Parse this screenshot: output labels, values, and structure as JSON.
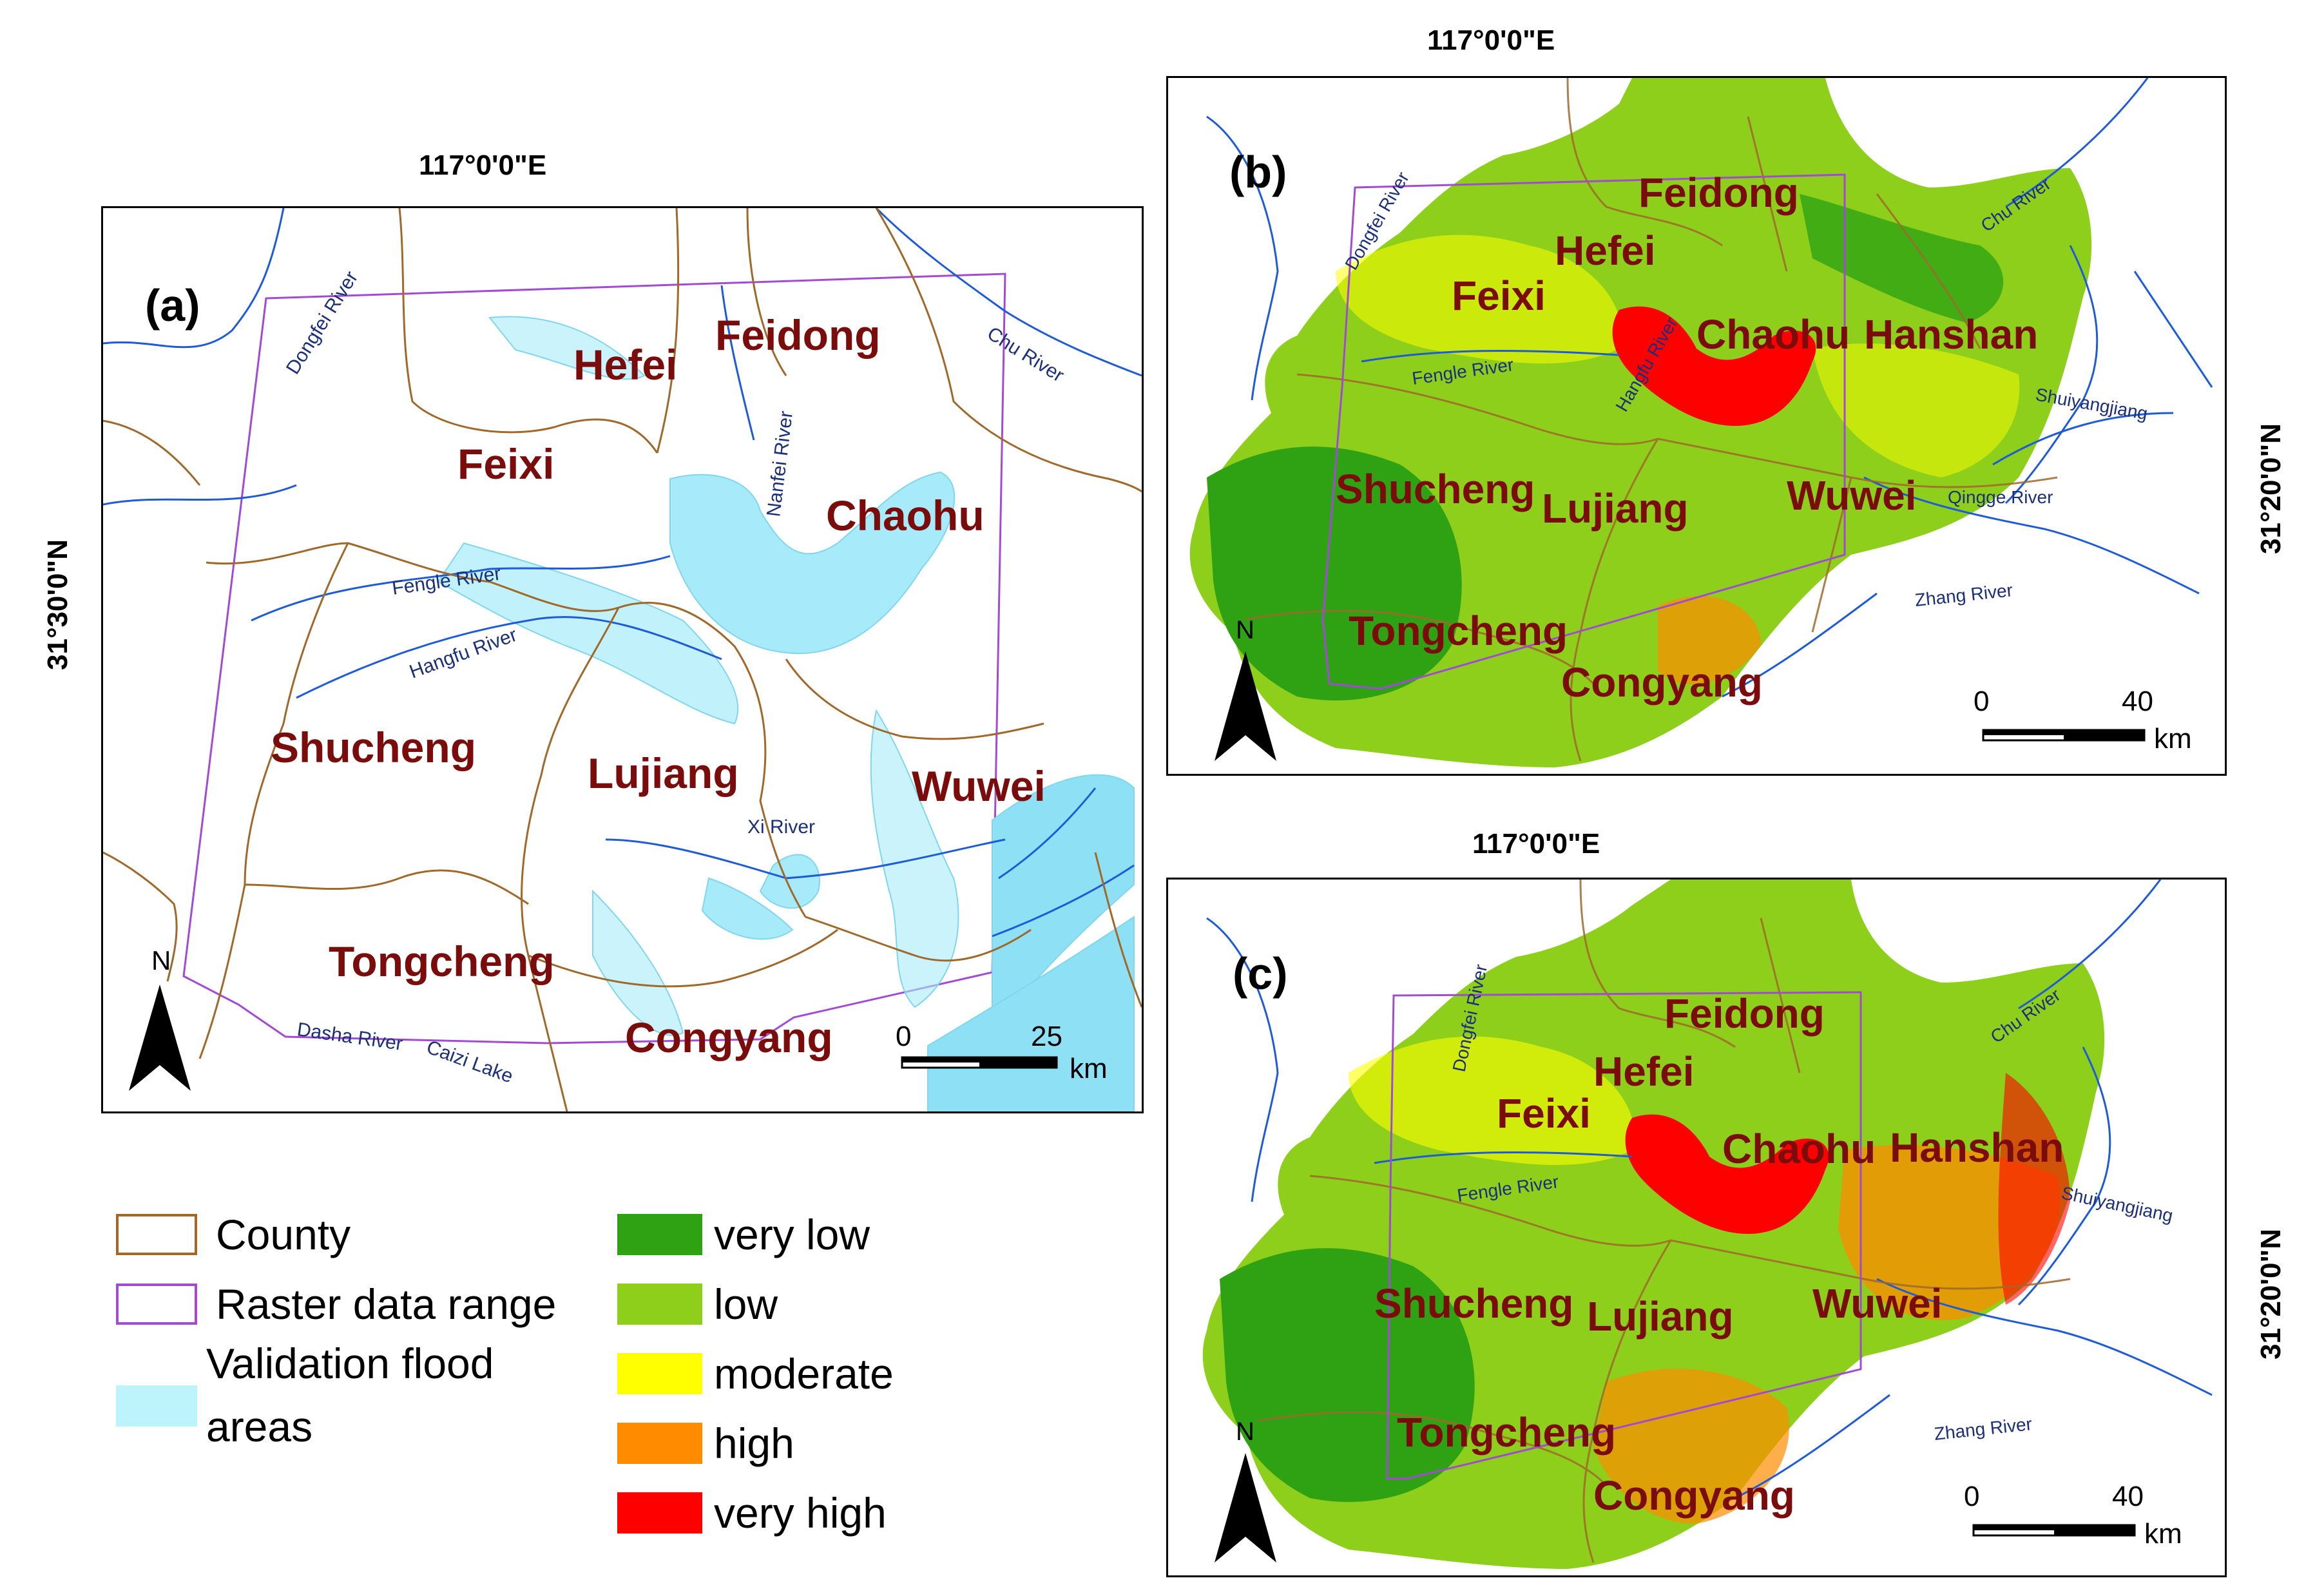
{
  "panels": {
    "a": {
      "label": "(a)",
      "top_coord": "117°0'0\"E",
      "side_coord": "31°30'0\"N",
      "counties": [
        "Feidong",
        "Hefei",
        "Feixi",
        "Chaohu",
        "Shucheng",
        "Lujiang",
        "Wuwei",
        "Tongcheng",
        "Congyang"
      ],
      "rivers": [
        "Dongfei River",
        "Chu River",
        "Nanfei River",
        "Fengle River",
        "Hangfu River",
        "Xi River",
        "Dasha River",
        "Caizi Lake"
      ],
      "north": "N",
      "scale": {
        "zero": "0",
        "max": "25",
        "unit": "km"
      }
    },
    "b": {
      "label": "(b)",
      "top_coord": "117°0'0\"E",
      "side_coord": "31°20'0\"N",
      "counties": [
        "Feidong",
        "Hefei",
        "Feixi",
        "Chaohu",
        "Hanshan",
        "Shucheng",
        "Lujiang",
        "Wuwei",
        "Tongcheng",
        "Congyang"
      ],
      "rivers": [
        "Dongfei River",
        "Chu River",
        "Fengle River",
        "Hangfu River",
        "Shuiyangjiang",
        "Qingge River",
        "Zhang River"
      ],
      "north": "N",
      "scale": {
        "zero": "0",
        "max": "40",
        "unit": "km"
      }
    },
    "c": {
      "label": "(c)",
      "top_coord": "117°0'0\"E",
      "side_coord": "31°20'0\"N",
      "counties": [
        "Feidong",
        "Hefei",
        "Feixi",
        "Chaohu",
        "Hanshan",
        "Shucheng",
        "Lujiang",
        "Wuwei",
        "Tongcheng",
        "Congyang"
      ],
      "rivers": [
        "Dongfei River",
        "Chu River",
        "Fengle River",
        "Shuiyangjiang",
        "Zhang River"
      ],
      "north": "N",
      "scale": {
        "zero": "0",
        "max": "40",
        "unit": "km"
      }
    }
  },
  "legend": {
    "items": [
      {
        "label": "County",
        "type": "outline",
        "color": "#a0692a"
      },
      {
        "label": "Raster data range",
        "type": "outline",
        "color": "#a24ad6"
      },
      {
        "label": "Validation flood",
        "label2": "areas",
        "type": "fill",
        "color": "#bdf3fb"
      }
    ],
    "classes": [
      {
        "label": "very low",
        "color": "#2fa214"
      },
      {
        "label": "low",
        "color": "#8dcf1a"
      },
      {
        "label": "moderate",
        "color": "#ffff00"
      },
      {
        "label": "high",
        "color": "#ff8c00"
      },
      {
        "label": "very high",
        "color": "#ff0000"
      }
    ]
  },
  "colors": {
    "county_border": "#a0692a",
    "raster_range": "#a24ad6",
    "river": "#1e5bd8",
    "flood": "#a7ebfa",
    "county_label": "#7a0c0c",
    "river_label": "#1b2f7a"
  }
}
